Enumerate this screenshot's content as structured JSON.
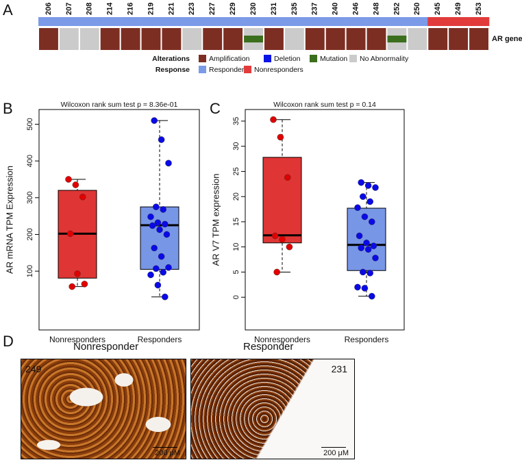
{
  "panel_labels": [
    "A",
    "B",
    "C",
    "D"
  ],
  "chart_data": [
    {
      "type": "heatmap",
      "samples": [
        "206",
        "207",
        "208",
        "214",
        "216",
        "219",
        "221",
        "223",
        "227",
        "229",
        "230",
        "231",
        "235",
        "237",
        "240",
        "246",
        "248",
        "252",
        "250",
        "245",
        "249",
        "253"
      ],
      "response": [
        "Responders",
        "Responders",
        "Responders",
        "Responders",
        "Responders",
        "Responders",
        "Responders",
        "Responders",
        "Responders",
        "Responders",
        "Responders",
        "Responders",
        "Responders",
        "Responders",
        "Responders",
        "Responders",
        "Responders",
        "Responders",
        "Responders",
        "Nonresponders",
        "Nonresponders",
        "Nonresponders"
      ],
      "alterations": [
        "Amplification",
        "No Abnormality",
        "No Abnormality",
        "Amplification",
        "Amplification",
        "Amplification",
        "Amplification",
        "No Abnormality",
        "Amplification",
        "Amplification",
        "Mutation",
        "Amplification",
        "No Abnormality",
        "Amplification",
        "Amplification",
        "Amplification",
        "Amplification",
        "Mutation",
        "No Abnormality",
        "Amplification",
        "Amplification",
        "Amplification"
      ],
      "row_label": "AR gene",
      "legends": [
        {
          "title": "Alterations",
          "items": [
            {
              "name": "Amplification",
              "color": "#7d2e22"
            },
            {
              "name": "Deletion",
              "color": "#0a14e6"
            },
            {
              "name": "Mutation",
              "color": "#3b6f1d"
            },
            {
              "name": "No Abnormality",
              "color": "#cbcbcb"
            }
          ]
        },
        {
          "title": "Response",
          "items": [
            {
              "name": "Responders",
              "color": "#7b9ae8"
            },
            {
              "name": "Nonresponders",
              "color": "#e23b3b"
            }
          ]
        }
      ]
    },
    {
      "type": "box",
      "title": "Wilcoxon rank sum test p = 8.36e-01",
      "ylabel": "AR mRNA TPM Expression",
      "categories": [
        "Nonresponders",
        "Responders"
      ],
      "box_colors": [
        "#e03535",
        "#7896e6"
      ],
      "point_colors": [
        "#e00000",
        "#0a0ae6"
      ],
      "boxes": [
        {
          "min": 58,
          "q1": 81,
          "median": 202,
          "q3": 320,
          "max": 350
        },
        {
          "min": 30,
          "q1": 105,
          "median": 225,
          "q3": 275,
          "max": 510
        }
      ],
      "points": [
        [
          350,
          335,
          302,
          202,
          93,
          65,
          58
        ],
        [
          510,
          458,
          394,
          275,
          268,
          248,
          232,
          228,
          224,
          213,
          200,
          163,
          140,
          110,
          107,
          97,
          90,
          62,
          30
        ]
      ],
      "ylim": [
        -60,
        540
      ],
      "yticks": [
        100,
        200,
        300,
        400,
        500
      ]
    },
    {
      "type": "box",
      "title": "Wilcoxon rank sum test p = 0.14",
      "ylabel": "AR V7  TPM expression",
      "categories": [
        "Nonresponders",
        "Responders"
      ],
      "box_colors": [
        "#e03535",
        "#7896e6"
      ],
      "point_colors": [
        "#e00000",
        "#0a0ae6"
      ],
      "boxes": [
        {
          "min": 5,
          "q1": 10.8,
          "median": 12.3,
          "q3": 27.8,
          "max": 35.3
        },
        {
          "min": 0.2,
          "q1": 5.3,
          "median": 10.4,
          "q3": 17.7,
          "max": 22.8
        }
      ],
      "points": [
        [
          35.3,
          31.8,
          23.8,
          12.2,
          11.5,
          10,
          5
        ],
        [
          22.8,
          22.2,
          21.8,
          20,
          19,
          17.8,
          16,
          15,
          12.2,
          10.8,
          10.2,
          9.8,
          9.5,
          7.8,
          5,
          4.8,
          2,
          1.8,
          0.2
        ]
      ],
      "ylim": [
        -6.5,
        37.3
      ],
      "yticks": [
        0,
        5,
        10,
        15,
        20,
        25,
        30,
        35
      ]
    }
  ],
  "images": [
    {
      "title": "Nonresponder",
      "sample": "249",
      "scale": "200 μM"
    },
    {
      "title": "Responder",
      "sample": "231",
      "scale": "200 μM"
    }
  ]
}
